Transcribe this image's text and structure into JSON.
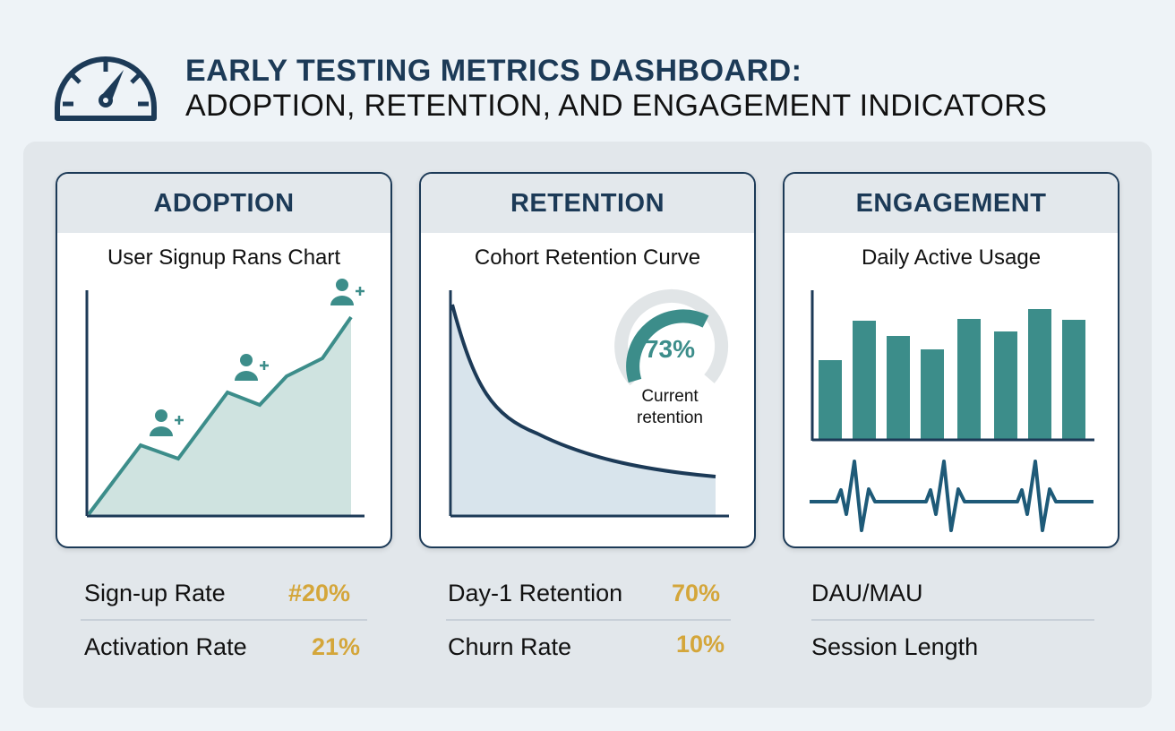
{
  "header": {
    "title_line1": "EARLY TESTING METRICS DASHBOARD:",
    "title_line2": "ADOPTION, RETENTION, AND ENGAGEMENT INDICATORS",
    "icon": "speedometer-icon"
  },
  "colors": {
    "navy": "#1c3a57",
    "teal": "#3c8d8a",
    "gold": "#d4a63a"
  },
  "cards": [
    {
      "title": "ADOPTION",
      "subtitle": "User Signup Rans Chart"
    },
    {
      "title": "RETENTION",
      "subtitle": "Cohort Retention Curve",
      "gauge_value": "73%",
      "gauge_fraction": 0.73,
      "gauge_label_1": "Current",
      "gauge_label_2": "retention"
    },
    {
      "title": "ENGAGEMENT",
      "subtitle": "Daily Active Usage"
    }
  ],
  "metrics": {
    "adoption": [
      {
        "label": "Sign-up Rate",
        "value": "#20%"
      },
      {
        "label": "Activation Rate",
        "value": "21%"
      }
    ],
    "retention": [
      {
        "label": "Day-1 Retention",
        "value": "70%"
      },
      {
        "label": "Churn Rate",
        "value": "10%"
      }
    ],
    "engagement": [
      {
        "label": "DAU/MAU"
      },
      {
        "label": "Session Length"
      }
    ]
  }
}
